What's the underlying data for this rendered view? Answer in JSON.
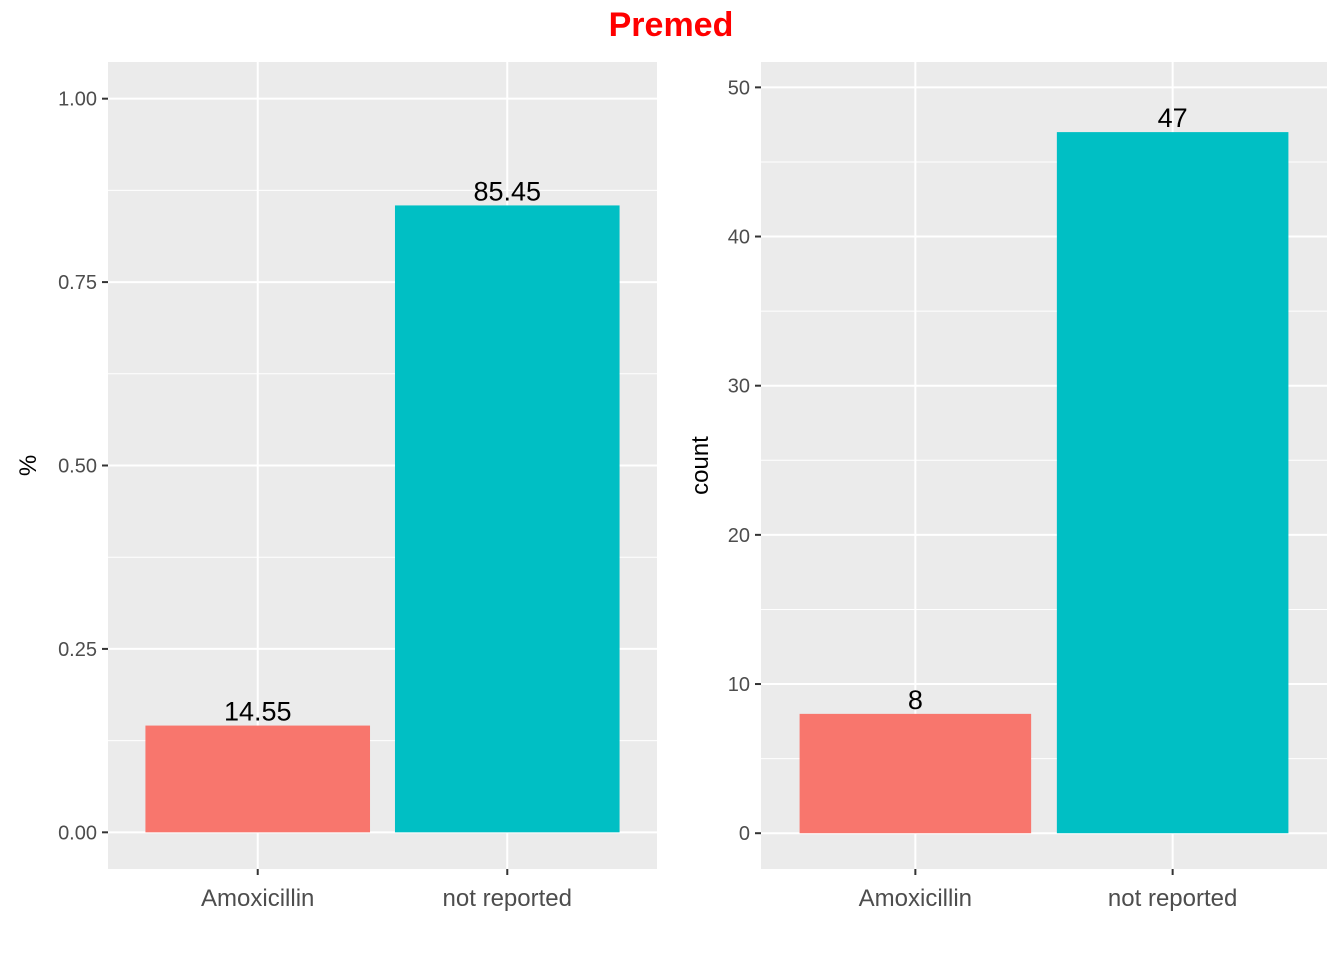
{
  "title": "Premed",
  "colors": {
    "title": "#ff0000",
    "panel_background": "#ebebeb",
    "grid": "#ffffff",
    "bar_amoxicillin": "#f8766d",
    "bar_not_reported": "#00bfc4"
  },
  "chart_data": [
    {
      "type": "bar",
      "categories": [
        "Amoxicillin",
        "not reported"
      ],
      "values": [
        0.1455,
        0.8545
      ],
      "data_labels": [
        "14.55",
        "85.45"
      ],
      "ylabel": "%",
      "xlabel": "",
      "ylim": [
        -0.05,
        1.05
      ],
      "yticks": [
        0,
        0.25,
        0.5,
        0.75,
        1
      ],
      "ytick_labels": [
        "0.00",
        "0.25",
        "0.50",
        "0.75",
        "1.00"
      ],
      "grid": true,
      "legend": "none"
    },
    {
      "type": "bar",
      "categories": [
        "Amoxicillin",
        "not reported"
      ],
      "values": [
        8,
        47
      ],
      "data_labels": [
        "8",
        "47"
      ],
      "ylabel": "count",
      "xlabel": "",
      "ylim": [
        -2.4,
        51.7
      ],
      "yticks": [
        0,
        10,
        20,
        30,
        40,
        50
      ],
      "ytick_labels": [
        "0",
        "10",
        "20",
        "30",
        "40",
        "50"
      ],
      "grid": true,
      "legend": "none"
    }
  ]
}
